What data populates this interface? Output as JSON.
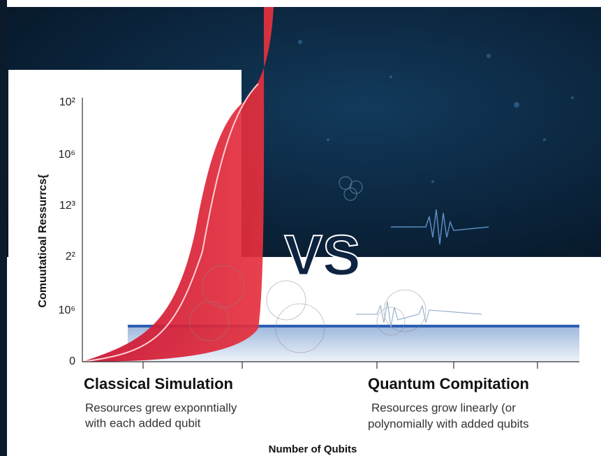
{
  "axis": {
    "y_label": "Comuutatioal Ressurrcs{",
    "y_ticks": [
      "10²",
      "10⁶",
      "12³",
      "2²",
      "10⁶",
      "0"
    ],
    "x_label": "Number of Qubits"
  },
  "vs": "VS",
  "left": {
    "title": "Classical Simulation",
    "lines": [
      "Resources grew exponntially",
      "with each added qubit"
    ]
  },
  "right": {
    "title": "Quantum Compitation",
    "lines": [
      "Resources grow linearly (or",
      "polynomially with added qubits"
    ]
  }
}
